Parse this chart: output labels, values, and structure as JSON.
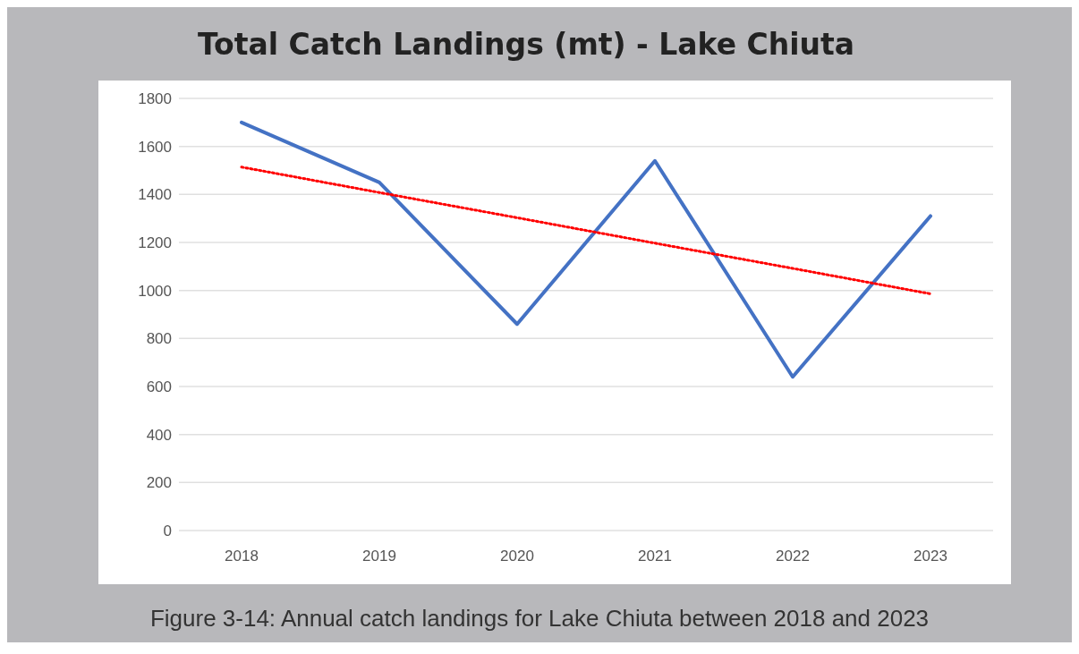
{
  "chart_data": {
    "type": "line",
    "title": "Total Catch Landings (mt) - Lake Chiuta",
    "categories": [
      "2018",
      "2019",
      "2020",
      "2021",
      "2022",
      "2023"
    ],
    "series": [
      {
        "color": "#4472c4",
        "values": [
          1700,
          1450,
          860,
          1540,
          640,
          1310
        ],
        "line_style": "solid"
      },
      {
        "color": "#ff0000",
        "values": [
          1514,
          1408,
          1303,
          1197,
          1092,
          986
        ],
        "line_style": "dotted"
      }
    ],
    "ylim": [
      0,
      1800
    ],
    "yticks": [
      0,
      200,
      400,
      600,
      800,
      1000,
      1200,
      1400,
      1600,
      1800
    ],
    "grid": "y",
    "marker": "none",
    "annotations": [
      "Figure 3-14: Annual catch landings for Lake Chiuta between 2018 and 2023"
    ]
  }
}
